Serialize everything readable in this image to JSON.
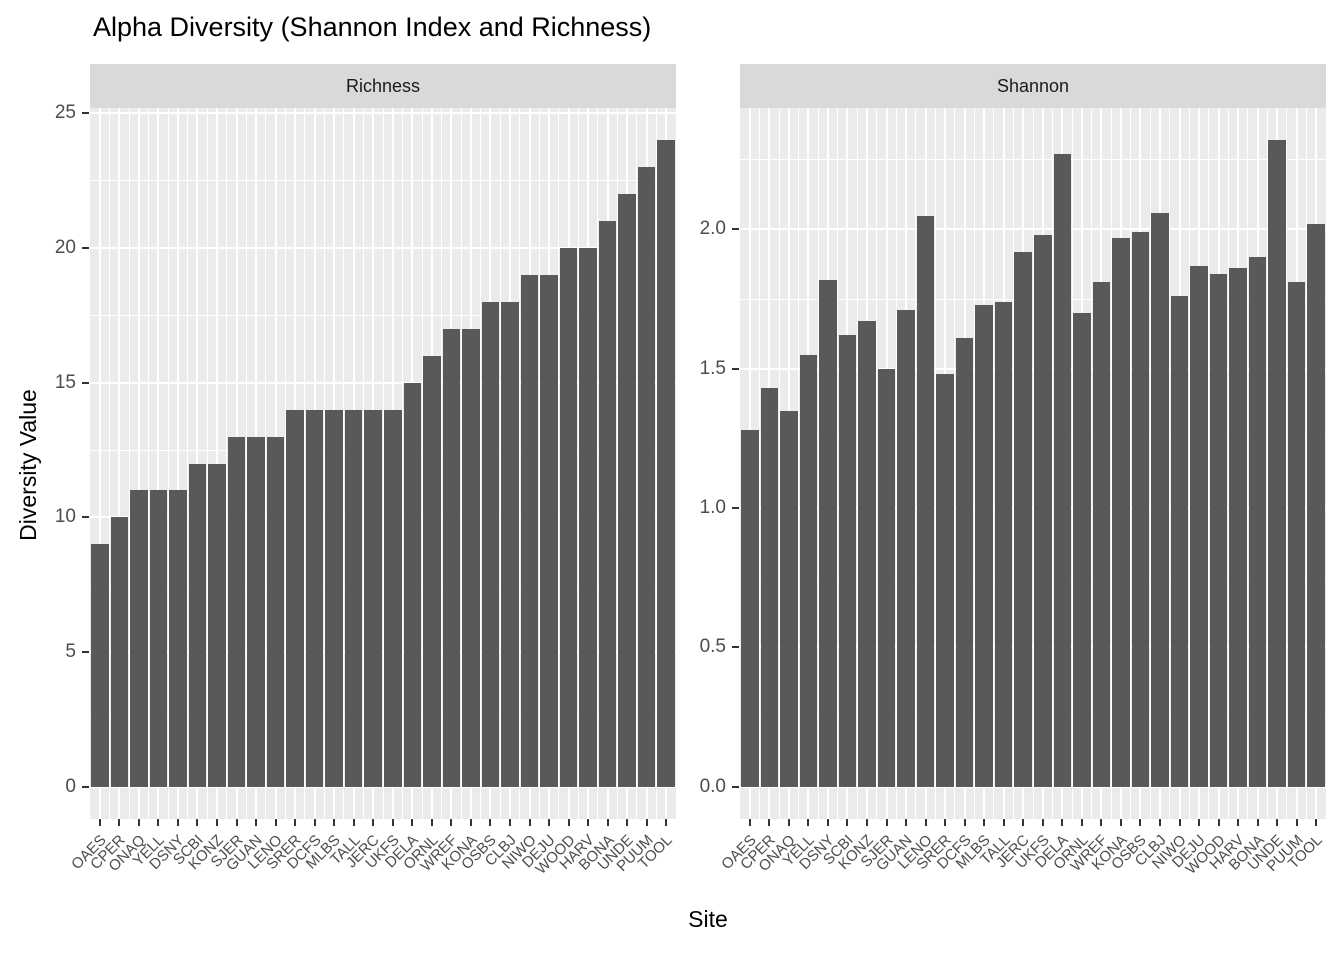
{
  "chart_data": {
    "type": "bar",
    "title": "Alpha Diversity (Shannon Index and Richness)",
    "xlabel": "Site",
    "ylabel": "Diversity Value",
    "legend": "none",
    "grid": "on",
    "categories": [
      "OAES",
      "CPER",
      "ONAQ",
      "YELL",
      "DSNY",
      "SCBI",
      "KONZ",
      "SJER",
      "GUAN",
      "LENO",
      "SRER",
      "DCFS",
      "MLBS",
      "TALL",
      "JERC",
      "UKFS",
      "DELA",
      "ORNL",
      "WREF",
      "KONA",
      "OSBS",
      "CLBJ",
      "NIWO",
      "DEJU",
      "WOOD",
      "HARV",
      "BONA",
      "UNDE",
      "PUUM",
      "TOOL"
    ],
    "facets": [
      {
        "label": "Richness",
        "values": [
          9,
          10,
          11,
          11,
          11,
          12,
          12,
          13,
          13,
          13,
          14,
          14,
          14,
          14,
          14,
          14,
          15,
          16,
          17,
          17,
          18,
          18,
          19,
          19,
          20,
          20,
          21,
          22,
          23,
          24
        ],
        "ytick_values": [
          0,
          5,
          10,
          15,
          20,
          25
        ],
        "ytick_labels": [
          "0",
          "5",
          "10",
          "15",
          "20",
          "25"
        ],
        "minor_tick_values": [
          2.5,
          7.5,
          12.5,
          17.5,
          22.5
        ],
        "ylim": [
          -1.2,
          25.2
        ]
      },
      {
        "label": "Shannon",
        "values": [
          1.28,
          1.43,
          1.35,
          1.55,
          1.82,
          1.62,
          1.67,
          1.5,
          1.71,
          2.05,
          1.48,
          1.61,
          1.73,
          1.74,
          1.92,
          1.98,
          2.27,
          1.7,
          1.81,
          1.97,
          1.99,
          2.06,
          1.76,
          1.87,
          1.84,
          1.86,
          1.9,
          2.32,
          1.81,
          2.02
        ],
        "ytick_values": [
          0,
          0.5,
          1.0,
          1.5,
          2.0
        ],
        "ytick_labels": [
          "0.0",
          "0.5",
          "1.0",
          "1.5",
          "2.0"
        ],
        "minor_tick_values": [
          0.25,
          0.75,
          1.25,
          1.75,
          2.25
        ],
        "ylim": [
          -0.116,
          2.436
        ]
      }
    ],
    "colors": {
      "bar": "#595959",
      "panel_bg": "#EBEBEB",
      "strip_bg": "#D9D9D9",
      "gridline": "#FFFFFF",
      "tick_mark": "#333333",
      "tick_label": "#4D4D4D",
      "title": "#000000"
    }
  }
}
